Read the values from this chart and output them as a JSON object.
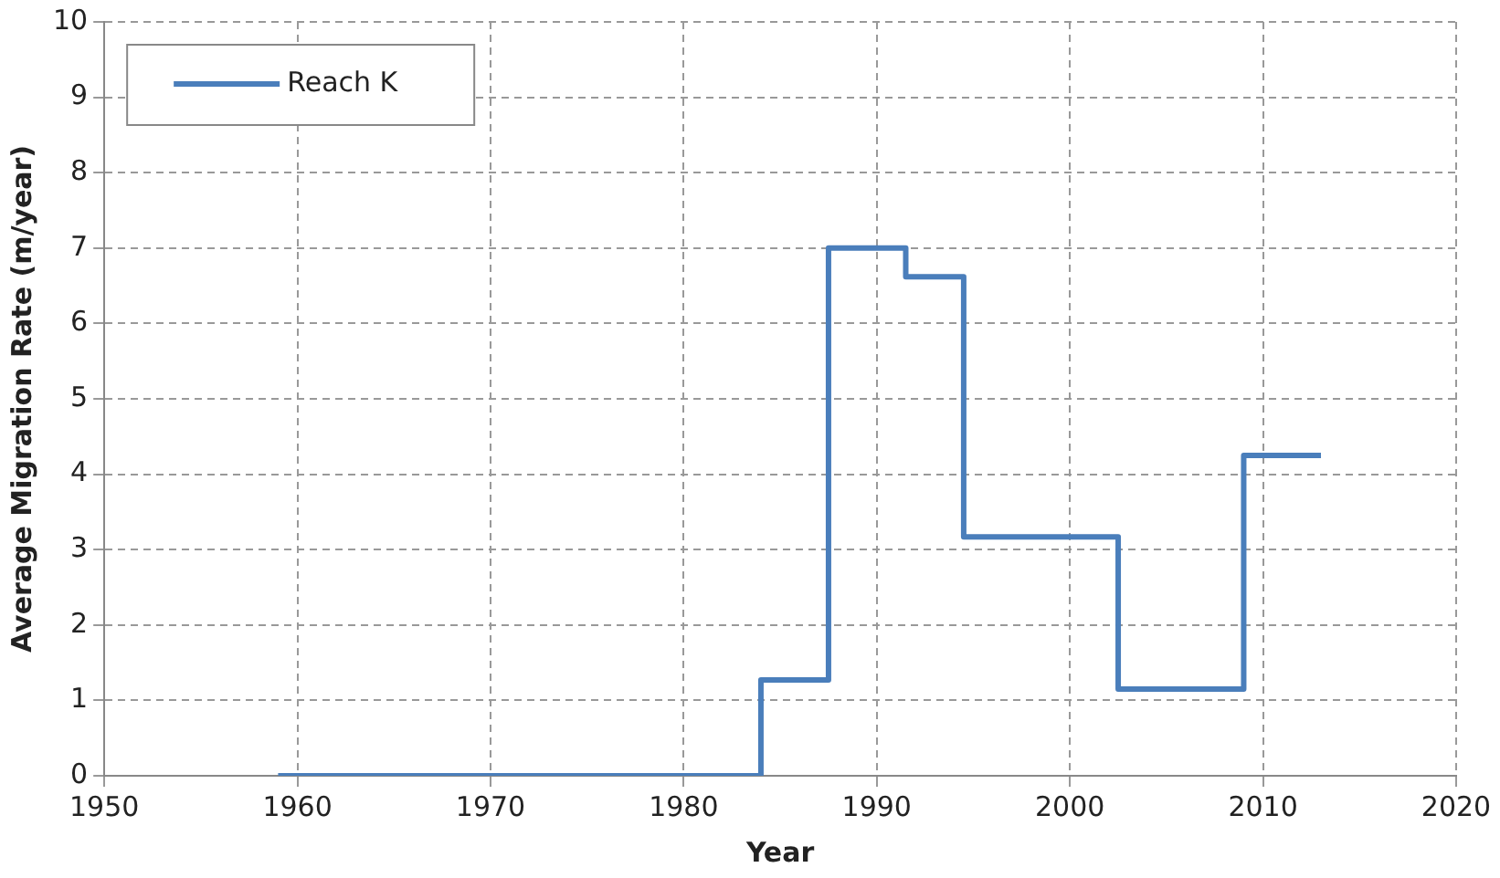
{
  "chart_data": {
    "type": "step",
    "xlabel": "Year",
    "ylabel": "Average Migration Rate (m/year)",
    "x": [
      1959,
      1984,
      1987.5,
      1991.5,
      1994.5,
      2002.5,
      2009,
      2013
    ],
    "series": [
      {
        "name": "Reach K",
        "color": "#4a7ebb",
        "values": [
          0,
          1.27,
          7.0,
          6.62,
          3.17,
          1.15,
          4.25,
          4.25
        ]
      }
    ],
    "xlim": [
      1950,
      2020
    ],
    "xticks": [
      1950,
      1960,
      1970,
      1980,
      1990,
      2000,
      2010,
      2020
    ],
    "ylim": [
      0,
      10
    ],
    "yticks": [
      0,
      1,
      2,
      3,
      4,
      5,
      6,
      7,
      8,
      9,
      10
    ],
    "grid": true,
    "line_style": "solid",
    "marker": "none",
    "legend": "top left"
  }
}
